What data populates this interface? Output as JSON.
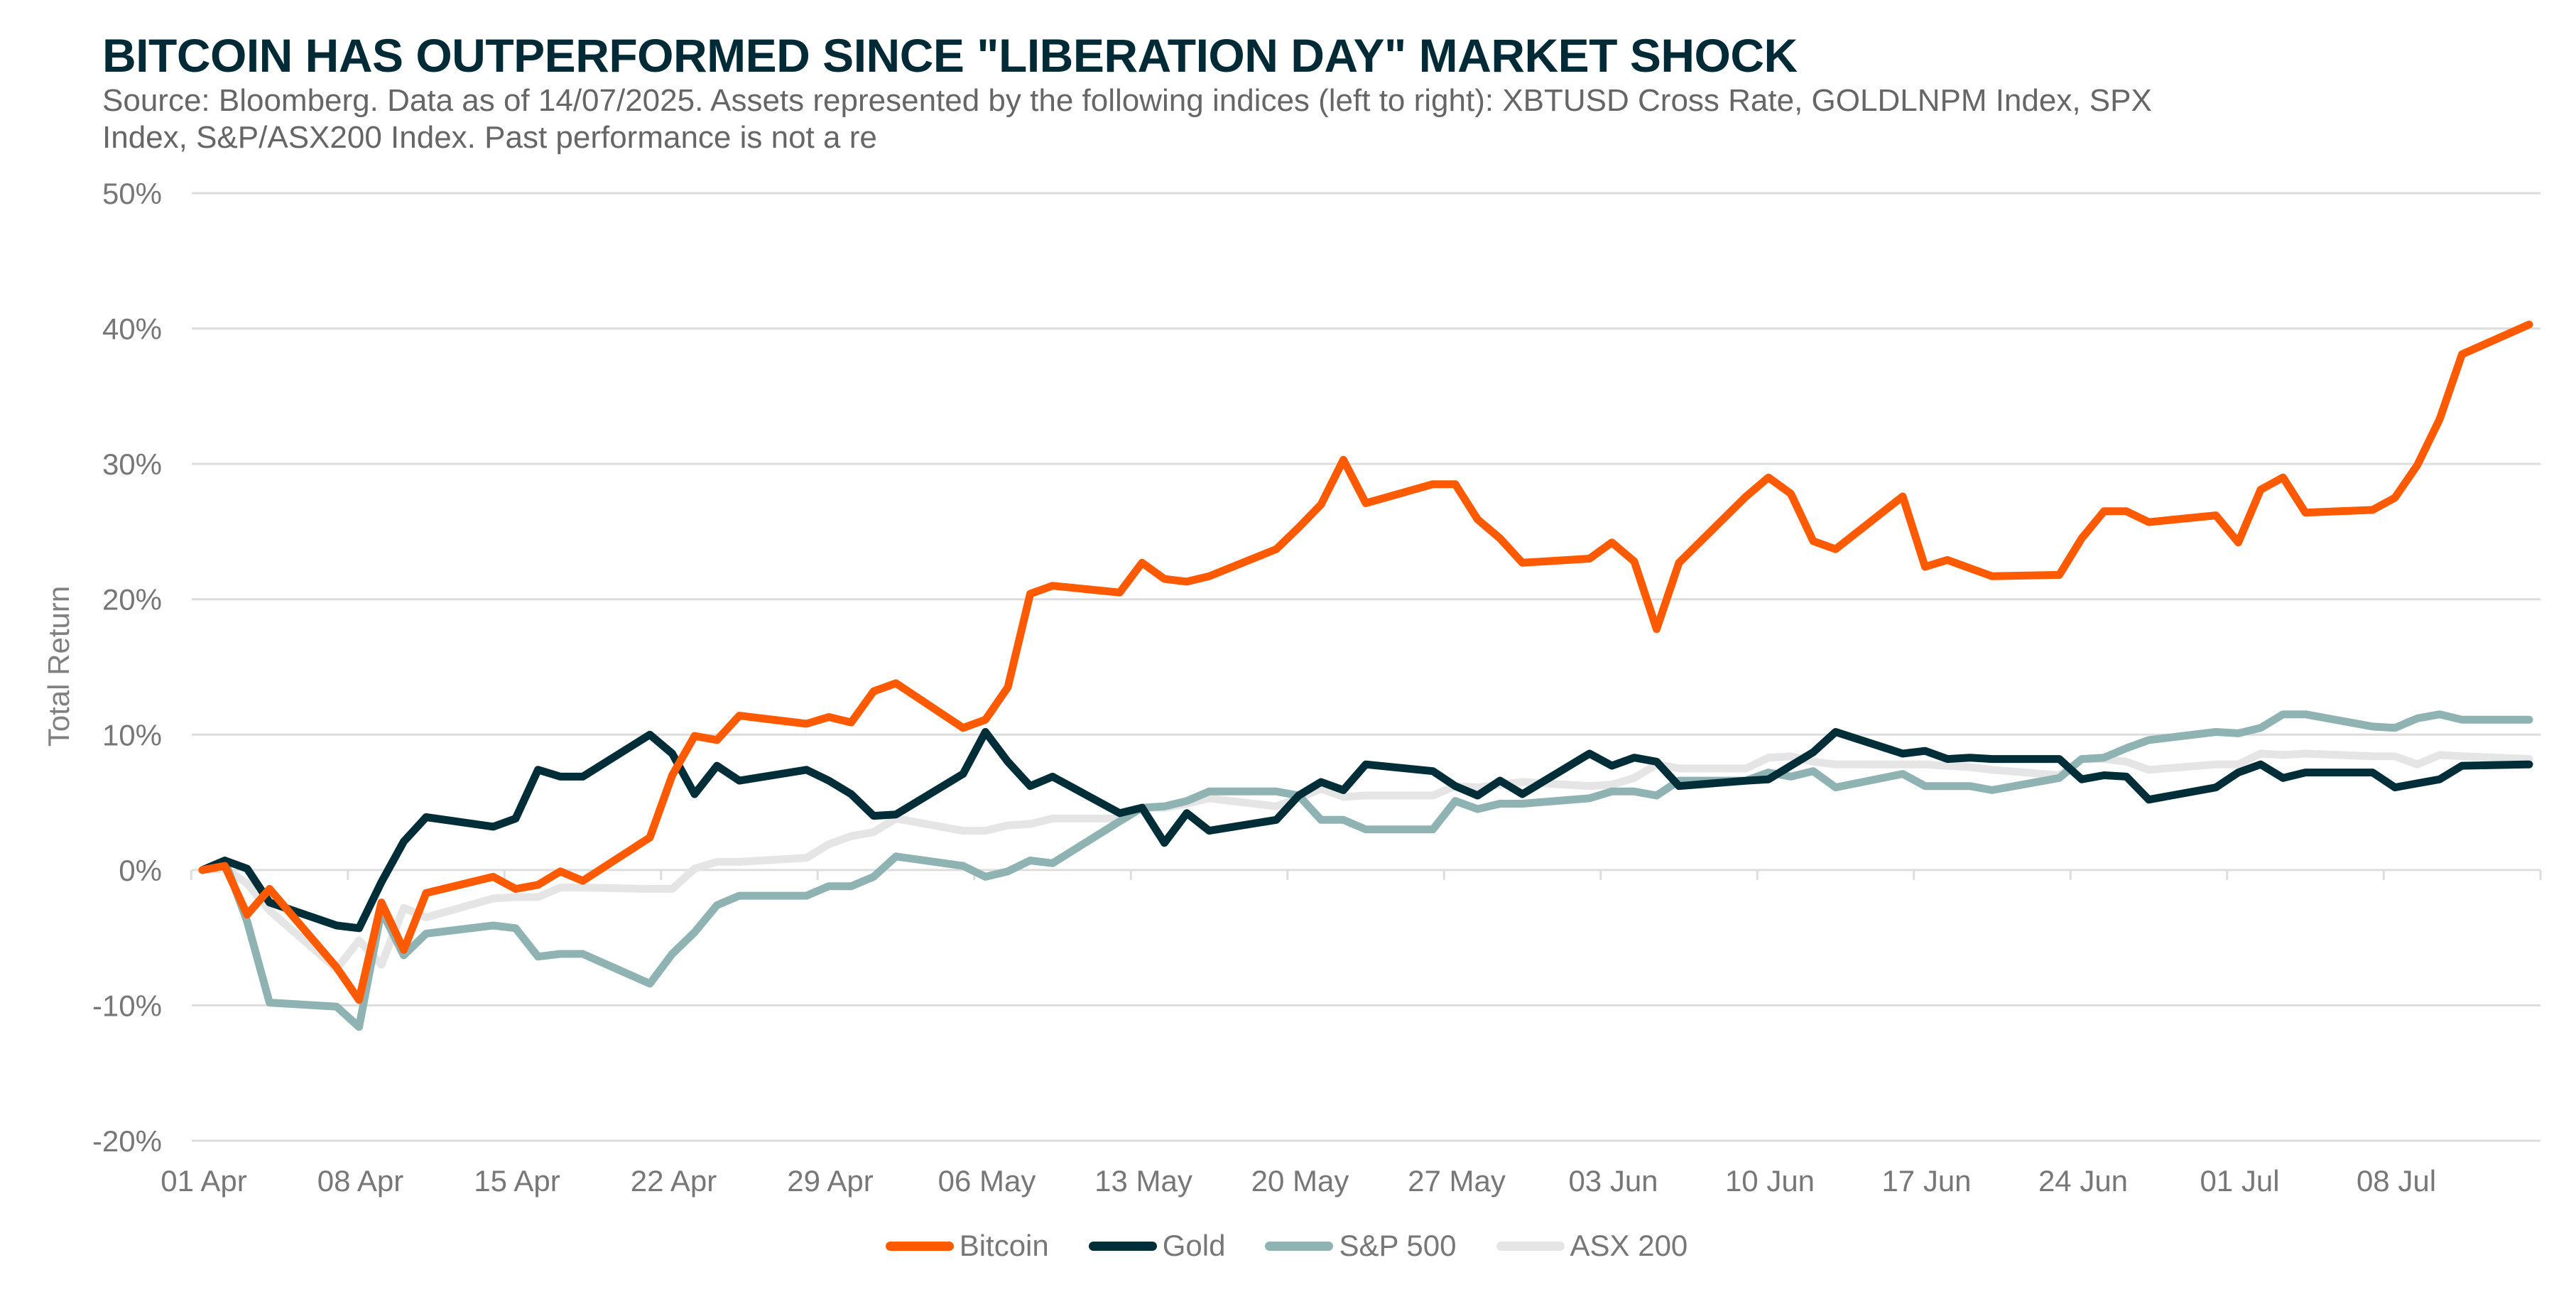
{
  "header": {
    "title": "BITCOIN HAS OUTPERFORMED SINCE \"LIBERATION DAY\" MARKET SHOCK",
    "subtitle": "Source: Bloomberg. Data as of 14/07/2025. Assets represented by the following indices (left to right): XBTUSD Cross Rate, GOLDLNPM Index, SPX Index, S&P/ASX200 Index. Past performance is not a re"
  },
  "chart_data": {
    "type": "line",
    "title": "BITCOIN HAS OUTPERFORMED SINCE \"LIBERATION DAY\" MARKET SHOCK",
    "xlabel": "",
    "ylabel": "Total Return",
    "ylim": [
      -20,
      50
    ],
    "yticks": [
      50,
      40,
      30,
      20,
      10,
      0,
      -10,
      -20
    ],
    "ytick_labels": [
      "50%",
      "40%",
      "30%",
      "20%",
      "10%",
      "0%",
      "-10%",
      "-20%"
    ],
    "xrange_days": [
      0,
      104
    ],
    "xtick_labels": [
      "01 Apr",
      "08 Apr",
      "15 Apr",
      "22 Apr",
      "29 Apr",
      "06 May",
      "13 May",
      "20 May",
      "27 May",
      "03 Jun",
      "10 Jun",
      "17 Jun",
      "24 Jun",
      "01 Jul",
      "08 Jul"
    ],
    "grid": true,
    "legend_position": "bottom-center",
    "x_day_offsets": [
      0,
      1,
      2,
      3,
      6,
      7,
      8,
      9,
      10,
      13,
      14,
      15,
      16,
      17,
      20,
      21,
      22,
      23,
      24,
      27,
      28,
      29,
      30,
      31,
      34,
      35,
      36,
      37,
      38,
      41,
      42,
      43,
      44,
      45,
      48,
      49,
      50,
      51,
      52,
      55,
      56,
      57,
      58,
      59,
      62,
      63,
      64,
      65,
      66,
      69,
      70,
      71,
      72,
      73,
      76,
      77,
      78,
      79,
      80,
      83,
      84,
      85,
      86,
      87,
      90,
      91,
      92,
      93,
      94,
      97,
      98,
      99,
      100,
      101,
      104
    ],
    "series": [
      {
        "name": "Bitcoin",
        "color": "#ff5a00",
        "values": [
          0,
          0.3,
          -3.3,
          -1.4,
          -7.2,
          -9.6,
          -2.4,
          -5.9,
          -1.7,
          -0.5,
          -1.4,
          -1.1,
          -0.1,
          -0.8,
          2.4,
          7.0,
          9.9,
          9.6,
          11.4,
          10.8,
          11.3,
          10.9,
          13.2,
          13.8,
          10.5,
          11.1,
          13.5,
          20.4,
          21.0,
          20.5,
          22.7,
          21.5,
          21.3,
          21.7,
          23.7,
          25.3,
          27.0,
          30.3,
          27.1,
          28.5,
          28.5,
          25.9,
          24.5,
          22.7,
          23.0,
          24.2,
          22.8,
          17.8,
          22.7,
          27.6,
          29.0,
          27.8,
          24.3,
          23.7,
          27.6,
          22.4,
          22.9,
          22.3,
          21.7,
          21.8,
          24.5,
          26.5,
          26.5,
          25.7,
          26.2,
          24.2,
          28.1,
          29.0,
          26.4,
          26.6,
          27.5,
          29.9,
          33.3,
          38.1,
          40.3
        ]
      },
      {
        "name": "Gold",
        "color": "#002e38",
        "values": [
          0,
          0.7,
          0.1,
          -2.4,
          -4.1,
          -4.3,
          -0.9,
          2.1,
          3.9,
          3.2,
          3.8,
          7.4,
          6.9,
          6.9,
          10.0,
          8.6,
          5.6,
          7.7,
          6.6,
          7.4,
          6.6,
          5.6,
          4.0,
          4.1,
          7.1,
          10.2,
          8.0,
          6.2,
          6.9,
          4.2,
          4.6,
          2.0,
          4.2,
          2.9,
          3.7,
          5.5,
          6.5,
          5.9,
          7.8,
          7.3,
          6.2,
          5.5,
          6.6,
          5.6,
          8.6,
          7.7,
          8.3,
          8.0,
          6.2,
          6.6,
          6.7,
          7.7,
          8.7,
          10.2,
          8.6,
          8.8,
          8.2,
          8.3,
          8.2,
          8.2,
          6.7,
          7.0,
          6.9,
          5.2,
          6.1,
          7.2,
          7.8,
          6.8,
          7.2,
          7.2,
          6.1,
          6.4,
          6.7,
          7.7,
          7.8
        ]
      },
      {
        "name": "S&P 500",
        "color": "#8fb3b3",
        "values": [
          0,
          0.7,
          -3.8,
          -9.8,
          -10.1,
          -11.6,
          -3.0,
          -6.3,
          -4.7,
          -4.1,
          -4.3,
          -6.4,
          -6.2,
          -6.2,
          -8.4,
          -6.2,
          -4.6,
          -2.6,
          -1.9,
          -1.9,
          -1.2,
          -1.2,
          -0.5,
          1.0,
          0.3,
          -0.5,
          -0.1,
          0.7,
          0.5,
          3.6,
          4.6,
          4.7,
          5.1,
          5.8,
          5.8,
          5.5,
          3.7,
          3.7,
          3.0,
          3.0,
          5.1,
          4.5,
          4.9,
          4.9,
          5.3,
          5.8,
          5.8,
          5.5,
          6.6,
          6.6,
          7.2,
          6.9,
          7.3,
          6.1,
          7.1,
          6.2,
          6.2,
          6.2,
          5.9,
          6.8,
          8.2,
          8.3,
          9.0,
          9.6,
          10.2,
          10.1,
          10.5,
          11.5,
          11.5,
          10.6,
          10.5,
          11.2,
          11.5,
          11.1,
          11.1
        ]
      },
      {
        "name": "ASX 200",
        "color": "#e5e5e5",
        "values": [
          0,
          0.1,
          -1.0,
          -3.0,
          -7.3,
          -5.2,
          -7.0,
          -2.8,
          -3.5,
          -2.1,
          -2.0,
          -2.0,
          -1.3,
          -1.3,
          -1.4,
          -1.4,
          0.1,
          0.6,
          0.6,
          0.9,
          1.9,
          2.5,
          2.8,
          3.8,
          2.9,
          2.9,
          3.3,
          3.4,
          3.8,
          3.8,
          4.6,
          4.6,
          4.9,
          5.3,
          4.7,
          5.3,
          6.0,
          5.4,
          5.5,
          5.5,
          6.2,
          6.1,
          6.3,
          6.5,
          6.2,
          6.3,
          6.8,
          7.8,
          7.5,
          7.5,
          8.3,
          8.4,
          8.0,
          7.8,
          7.8,
          7.8,
          7.7,
          7.6,
          7.4,
          7.0,
          8.2,
          8.2,
          8.0,
          7.4,
          7.8,
          7.8,
          8.6,
          8.5,
          8.6,
          8.4,
          8.4,
          7.8,
          8.5,
          8.4,
          8.2
        ]
      }
    ]
  }
}
